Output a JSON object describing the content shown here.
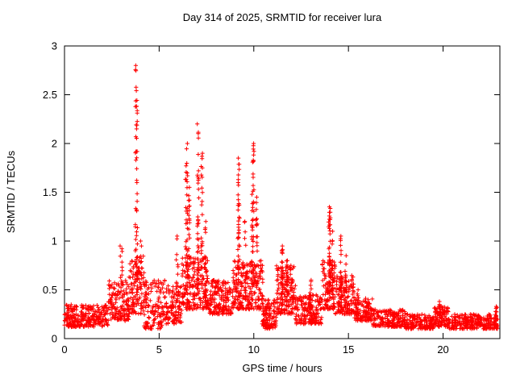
{
  "chart_data": {
    "type": "scatter",
    "title": "Day 314 of 2025, SRMTID for receiver lura",
    "xlabel": "GPS time / hours",
    "ylabel": "SRMTID / TECUs",
    "xlim": [
      0,
      23
    ],
    "ylim": [
      0,
      3
    ],
    "xticks": [
      0,
      5,
      10,
      15,
      20
    ],
    "yticks": [
      0,
      0.5,
      1,
      1.5,
      2,
      2.5,
      3
    ],
    "grid": false,
    "legend": "none",
    "marker": "plus",
    "marker_color": "#ff0000",
    "background": "#ffffff",
    "baseline_segments": [
      {
        "x0": 0.0,
        "x1": 2.3,
        "ymin": 0.12,
        "ymax": 0.35,
        "count": 260
      },
      {
        "x0": 2.3,
        "x1": 3.4,
        "ymin": 0.18,
        "ymax": 0.6,
        "count": 140
      },
      {
        "x0": 3.4,
        "x1": 4.2,
        "ymin": 0.25,
        "ymax": 0.85,
        "count": 110
      },
      {
        "x0": 4.2,
        "x1": 5.3,
        "ymin": 0.1,
        "ymax": 0.6,
        "count": 130
      },
      {
        "x0": 5.3,
        "x1": 6.2,
        "ymin": 0.15,
        "ymax": 0.55,
        "count": 110
      },
      {
        "x0": 6.2,
        "x1": 7.6,
        "ymin": 0.3,
        "ymax": 0.85,
        "count": 200
      },
      {
        "x0": 7.6,
        "x1": 8.9,
        "ymin": 0.25,
        "ymax": 0.6,
        "count": 160
      },
      {
        "x0": 8.9,
        "x1": 10.4,
        "ymin": 0.3,
        "ymax": 0.8,
        "count": 220
      },
      {
        "x0": 10.4,
        "x1": 11.2,
        "ymin": 0.1,
        "ymax": 0.4,
        "count": 110
      },
      {
        "x0": 11.2,
        "x1": 12.2,
        "ymin": 0.25,
        "ymax": 0.75,
        "count": 150
      },
      {
        "x0": 12.2,
        "x1": 13.6,
        "ymin": 0.15,
        "ymax": 0.45,
        "count": 170
      },
      {
        "x0": 13.6,
        "x1": 14.3,
        "ymin": 0.3,
        "ymax": 0.8,
        "count": 110
      },
      {
        "x0": 14.3,
        "x1": 15.3,
        "ymin": 0.25,
        "ymax": 0.65,
        "count": 140
      },
      {
        "x0": 15.3,
        "x1": 16.3,
        "ymin": 0.18,
        "ymax": 0.42,
        "count": 120
      },
      {
        "x0": 16.3,
        "x1": 18.0,
        "ymin": 0.12,
        "ymax": 0.3,
        "count": 180
      },
      {
        "x0": 18.0,
        "x1": 19.5,
        "ymin": 0.1,
        "ymax": 0.25,
        "count": 150
      },
      {
        "x0": 19.5,
        "x1": 20.3,
        "ymin": 0.12,
        "ymax": 0.33,
        "count": 100
      },
      {
        "x0": 20.3,
        "x1": 22.9,
        "ymin": 0.1,
        "ymax": 0.25,
        "count": 260
      }
    ],
    "spikes": [
      {
        "x": 3.0,
        "spread": 0.15,
        "ymin": 0.5,
        "ymax": 0.95,
        "count": 12
      },
      {
        "x": 3.8,
        "spread": 0.12,
        "ymin": 0.6,
        "ymax": 2.8,
        "count": 55
      },
      {
        "x": 4.05,
        "spread": 0.08,
        "ymin": 0.5,
        "ymax": 1.0,
        "count": 10
      },
      {
        "x": 5.95,
        "spread": 0.1,
        "ymin": 0.4,
        "ymax": 1.05,
        "count": 15
      },
      {
        "x": 6.45,
        "spread": 0.12,
        "ymin": 0.5,
        "ymax": 2.0,
        "count": 35
      },
      {
        "x": 6.6,
        "spread": 0.08,
        "ymin": 0.5,
        "ymax": 1.55,
        "count": 20
      },
      {
        "x": 7.05,
        "spread": 0.1,
        "ymin": 0.5,
        "ymax": 2.2,
        "count": 40
      },
      {
        "x": 7.25,
        "spread": 0.08,
        "ymin": 0.5,
        "ymax": 1.9,
        "count": 25
      },
      {
        "x": 7.45,
        "spread": 0.06,
        "ymin": 0.4,
        "ymax": 1.2,
        "count": 12
      },
      {
        "x": 9.2,
        "spread": 0.1,
        "ymin": 0.6,
        "ymax": 1.85,
        "count": 40
      },
      {
        "x": 9.55,
        "spread": 0.08,
        "ymin": 0.4,
        "ymax": 1.2,
        "count": 15
      },
      {
        "x": 9.95,
        "spread": 0.12,
        "ymin": 0.6,
        "ymax": 2.0,
        "count": 45
      },
      {
        "x": 10.15,
        "spread": 0.08,
        "ymin": 0.5,
        "ymax": 1.45,
        "count": 20
      },
      {
        "x": 10.45,
        "spread": 0.06,
        "ymin": 0.3,
        "ymax": 0.75,
        "count": 10
      },
      {
        "x": 11.5,
        "spread": 0.1,
        "ymin": 0.3,
        "ymax": 0.95,
        "count": 25
      },
      {
        "x": 11.75,
        "spread": 0.08,
        "ymin": 0.3,
        "ymax": 0.8,
        "count": 15
      },
      {
        "x": 13.0,
        "spread": 0.08,
        "ymin": 0.25,
        "ymax": 0.6,
        "count": 12
      },
      {
        "x": 14.0,
        "spread": 0.1,
        "ymin": 0.5,
        "ymax": 1.35,
        "count": 35
      },
      {
        "x": 14.15,
        "spread": 0.06,
        "ymin": 0.4,
        "ymax": 1.1,
        "count": 15
      },
      {
        "x": 14.6,
        "spread": 0.08,
        "ymin": 0.4,
        "ymax": 1.05,
        "count": 20
      },
      {
        "x": 14.85,
        "spread": 0.06,
        "ymin": 0.35,
        "ymax": 0.85,
        "count": 12
      },
      {
        "x": 15.5,
        "spread": 0.06,
        "ymin": 0.25,
        "ymax": 0.5,
        "count": 8
      },
      {
        "x": 19.8,
        "spread": 0.08,
        "ymin": 0.2,
        "ymax": 0.38,
        "count": 8
      },
      {
        "x": 22.8,
        "spread": 0.08,
        "ymin": 0.15,
        "ymax": 0.33,
        "count": 10
      }
    ]
  }
}
